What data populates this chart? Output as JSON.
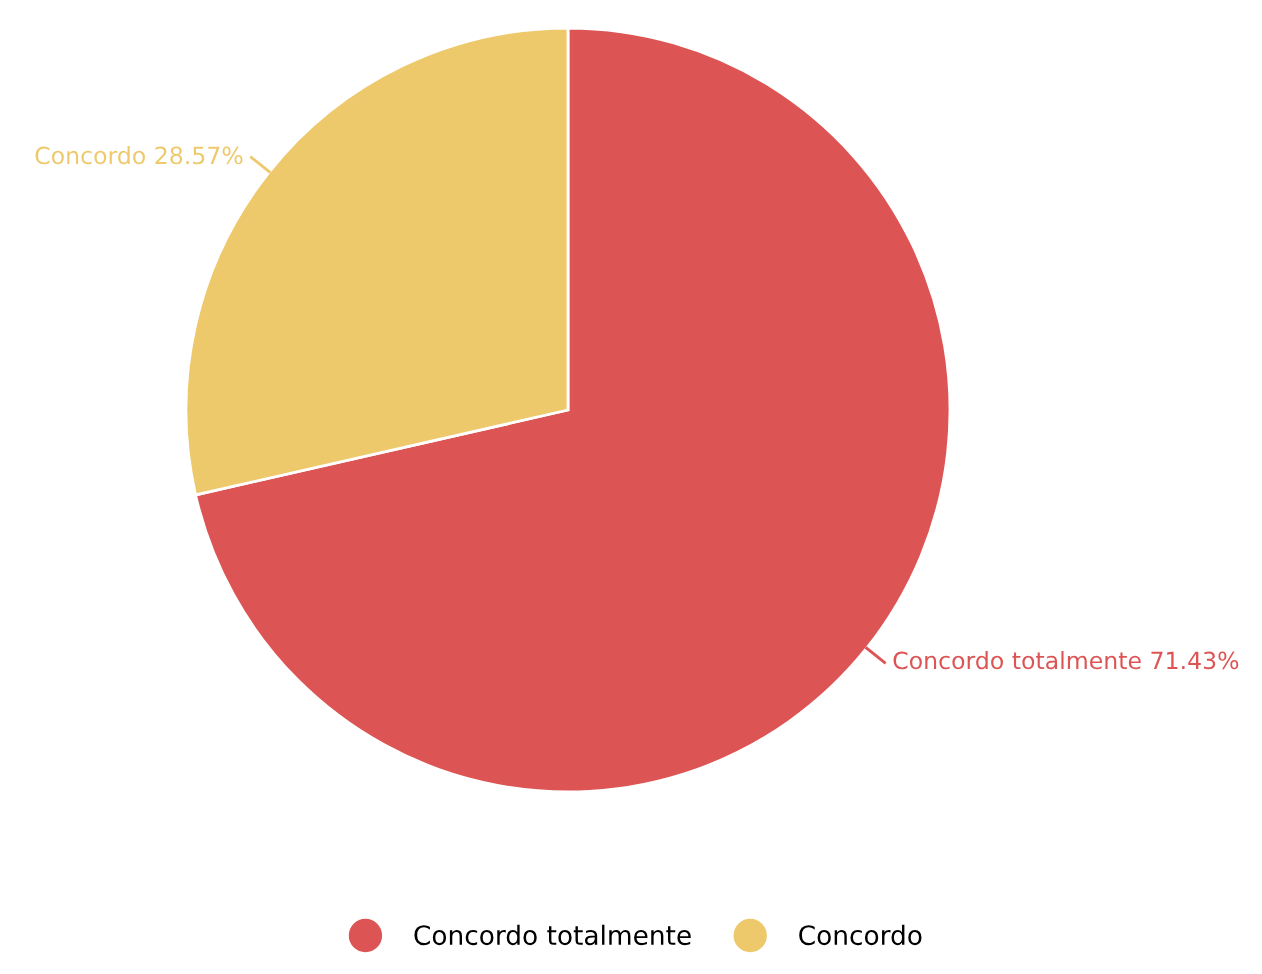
{
  "chart_data": {
    "type": "pie",
    "categories": [
      "Concordo totalmente",
      "Concordo"
    ],
    "values": [
      71.43,
      28.57
    ],
    "value_labels": [
      "71.43%",
      "28.57%"
    ],
    "colors": [
      "#dd5454",
      "#eec96b"
    ],
    "legend": "bottom"
  }
}
